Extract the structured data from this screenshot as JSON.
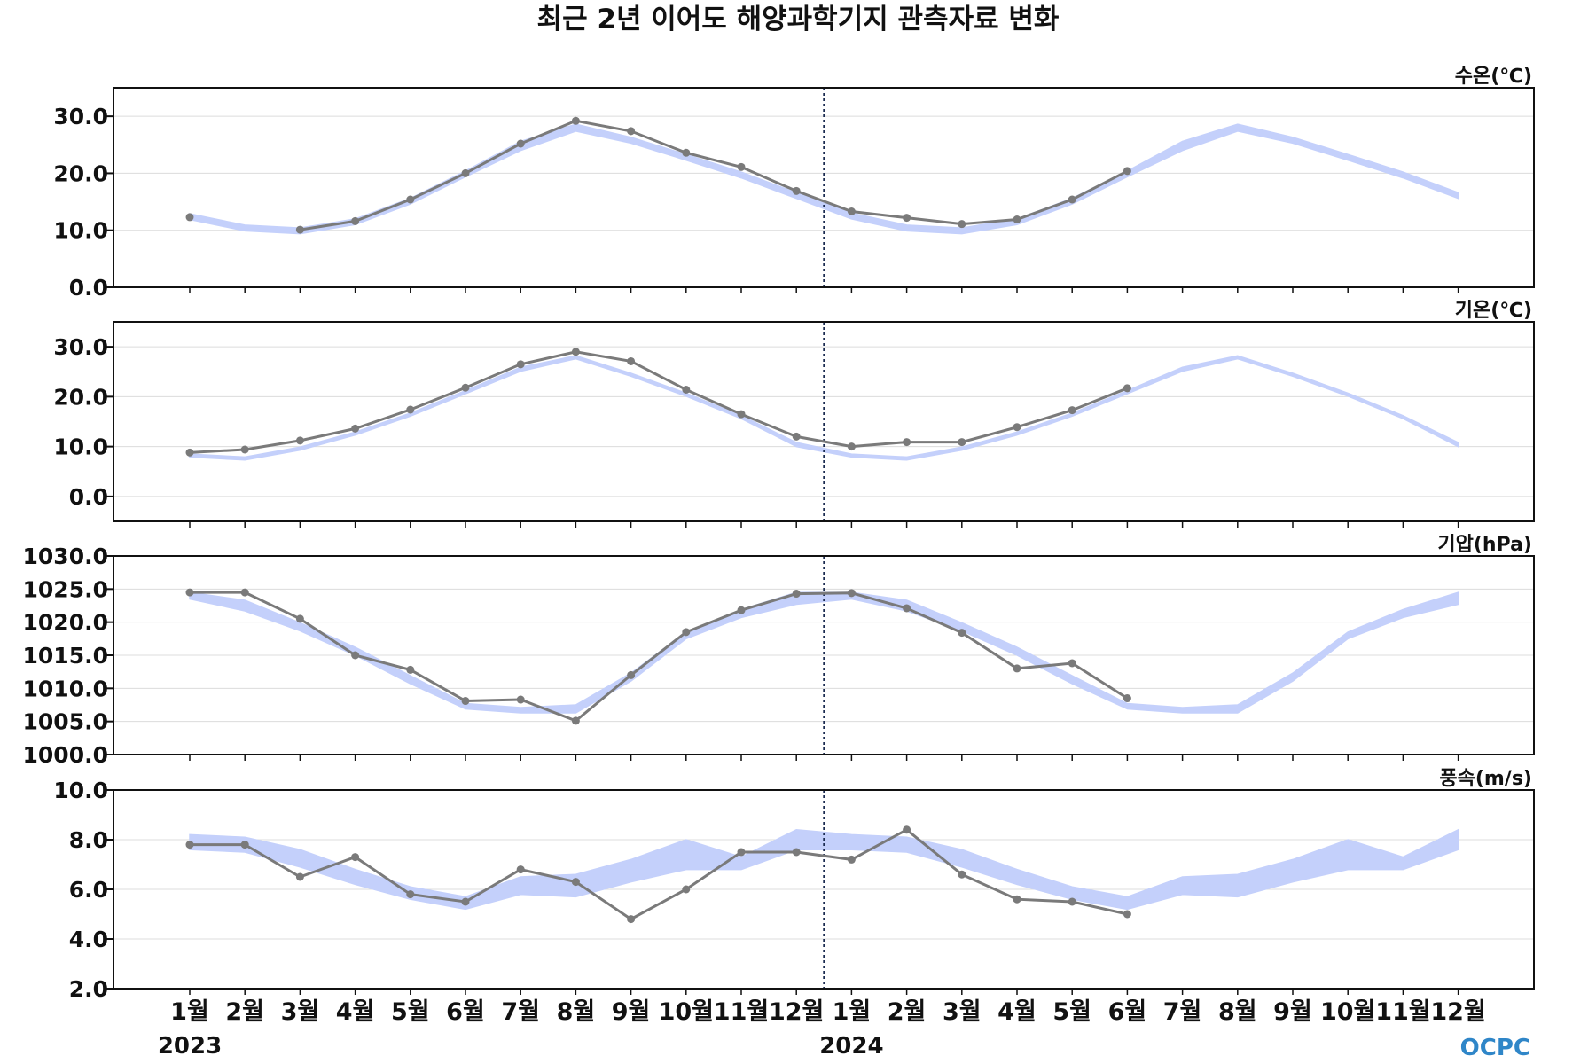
{
  "chart_data": {
    "type": "line",
    "title": "최근 2년 이어도 해양과학기지 관측자료 변화",
    "x_labels": [
      "1월",
      "2월",
      "3월",
      "4월",
      "5월",
      "6월",
      "7월",
      "8월",
      "9월",
      "10월",
      "11월",
      "12월",
      "1월",
      "2월",
      "3월",
      "4월",
      "5월",
      "6월",
      "7월",
      "8월",
      "9월",
      "10월",
      "11월",
      "12월"
    ],
    "years": [
      {
        "label": "2023",
        "start_index": 0
      },
      {
        "label": "2024",
        "start_index": 12
      }
    ],
    "current_marker": "2023-12 / 2024-01 boundary (dotted vertical line)",
    "logo": "OCPC",
    "colors": {
      "observed": "#7a7a7a",
      "climatology": "#c4d0fb",
      "marker": "#1a2a50"
    },
    "panels": [
      {
        "label": "수온(℃)",
        "ylim": [
          0,
          35
        ],
        "yticks": [
          "0.0",
          "10.0",
          "20.0",
          "30.0"
        ],
        "ytick_values": [
          0,
          10,
          20,
          30
        ],
        "observed": [
          12.3,
          null,
          10.1,
          11.6,
          15.4,
          20.0,
          25.2,
          29.2,
          27.4,
          23.6,
          21.1,
          16.9,
          13.3,
          12.2,
          11.1,
          11.9,
          15.4,
          20.4,
          null,
          null,
          null,
          null,
          null,
          null
        ],
        "climatology_lower": [
          11.9,
          9.9,
          9.4,
          11.0,
          14.6,
          19.4,
          24.0,
          27.4,
          25.3,
          22.3,
          19.2,
          15.6,
          12.0,
          9.9,
          9.4,
          11.0,
          14.6,
          19.4,
          24.0,
          27.4,
          25.3,
          22.3,
          19.2,
          15.6
        ],
        "climatology_upper": [
          12.9,
          10.9,
          10.4,
          12.0,
          15.6,
          20.4,
          25.6,
          28.6,
          26.3,
          23.3,
          20.2,
          16.6,
          13.0,
          10.9,
          10.4,
          12.0,
          15.6,
          20.4,
          25.6,
          28.6,
          26.3,
          23.3,
          20.2,
          16.6
        ]
      },
      {
        "label": "기온(℃)",
        "ylim": [
          -5,
          35
        ],
        "yticks": [
          "0.0",
          "10.0",
          "20.0",
          "30.0"
        ],
        "ytick_values": [
          0,
          10,
          20,
          30
        ],
        "observed": [
          8.8,
          9.4,
          11.2,
          13.6,
          17.4,
          21.8,
          26.5,
          29.0,
          27.1,
          21.4,
          16.5,
          12.0,
          10.0,
          10.9,
          10.9,
          13.9,
          17.3,
          21.7,
          null,
          null,
          null,
          null,
          null,
          null
        ],
        "climatology_lower": [
          7.9,
          7.3,
          9.3,
          12.3,
          16.1,
          20.6,
          25.1,
          27.6,
          24.1,
          20.1,
          15.6,
          10.0,
          7.9,
          7.3,
          9.3,
          12.3,
          16.1,
          20.6,
          25.1,
          27.6,
          24.1,
          20.1,
          15.6,
          10.0
        ],
        "climatology_upper": [
          8.5,
          7.9,
          9.9,
          12.9,
          16.7,
          21.2,
          25.9,
          28.2,
          24.7,
          20.7,
          16.2,
          10.8,
          8.5,
          7.9,
          9.9,
          12.9,
          16.7,
          21.2,
          25.9,
          28.2,
          24.7,
          20.7,
          16.2,
          10.8
        ]
      },
      {
        "label": "기압(hPa)",
        "ylim": [
          1000,
          1030
        ],
        "yticks": [
          "1000.0",
          "1005.0",
          "1010.0",
          "1015.0",
          "1020.0",
          "1025.0",
          "1030.0"
        ],
        "ytick_values": [
          1000,
          1005,
          1010,
          1015,
          1020,
          1025,
          1030
        ],
        "observed": [
          1024.5,
          1024.5,
          1020.5,
          1015.0,
          1012.8,
          1008.1,
          1008.3,
          1005.1,
          1012.0,
          1018.5,
          1021.8,
          1024.3,
          1024.4,
          1022.1,
          1018.4,
          1013.0,
          1013.8,
          1008.5,
          null,
          null,
          null,
          null,
          null,
          null
        ],
        "climatology_lower": [
          1023.5,
          1021.7,
          1018.7,
          1015.0,
          1010.7,
          1006.9,
          1006.3,
          1006.3,
          1011.1,
          1017.5,
          1020.7,
          1022.7,
          1023.5,
          1021.7,
          1018.7,
          1015.0,
          1010.7,
          1006.9,
          1006.3,
          1006.3,
          1011.1,
          1017.5,
          1020.7,
          1022.7
        ],
        "climatology_upper": [
          1024.5,
          1023.3,
          1019.9,
          1016.2,
          1011.9,
          1007.7,
          1007.1,
          1007.5,
          1012.3,
          1018.5,
          1021.9,
          1024.5,
          1024.5,
          1023.3,
          1019.9,
          1016.2,
          1011.9,
          1007.7,
          1007.1,
          1007.5,
          1012.3,
          1018.5,
          1021.9,
          1024.5
        ]
      },
      {
        "label": "풍속(m/s)",
        "ylim": [
          2,
          10
        ],
        "yticks": [
          "2.0",
          "4.0",
          "6.0",
          "8.0",
          "10.0"
        ],
        "ytick_values": [
          2,
          4,
          6,
          8,
          10
        ],
        "observed": [
          7.8,
          7.8,
          6.5,
          7.3,
          5.8,
          5.5,
          6.8,
          6.3,
          4.8,
          6.0,
          7.5,
          7.5,
          7.2,
          8.4,
          6.6,
          5.6,
          5.5,
          5.0,
          null,
          null,
          null,
          null,
          null,
          null
        ],
        "climatology_lower": [
          7.6,
          7.5,
          6.9,
          6.2,
          5.6,
          5.2,
          5.8,
          5.7,
          6.3,
          6.8,
          6.8,
          7.6,
          7.6,
          7.5,
          6.9,
          6.2,
          5.6,
          5.2,
          5.8,
          5.7,
          6.3,
          6.8,
          6.8,
          7.6
        ],
        "climatology_upper": [
          8.2,
          8.1,
          7.6,
          6.8,
          6.1,
          5.7,
          6.5,
          6.6,
          7.2,
          8.0,
          7.3,
          8.4,
          8.2,
          8.1,
          7.6,
          6.8,
          6.1,
          5.7,
          6.5,
          6.6,
          7.2,
          8.0,
          7.3,
          8.4
        ]
      }
    ]
  }
}
